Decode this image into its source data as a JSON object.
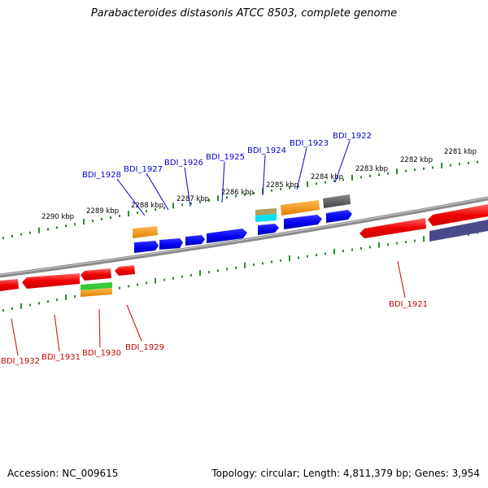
{
  "title": "Parabacteroides distasonis ATCC 8503, complete genome",
  "footer": {
    "accession": "Accession: NC_009615",
    "summary": "Topology: circular; Length: 4,811,379 bp; Genes: 3,954"
  },
  "scale_labels": {
    "top": [
      "2290 kbp",
      "2289 kbp",
      "2288 kbp",
      "2287 kbp",
      "2286 kbp",
      "2285 kbp",
      "2284 kbp",
      "2283 kbp",
      "2282 kbp",
      "2281 kbp"
    ]
  },
  "genes_top": [
    "BDI_1928",
    "BDI_1927",
    "BDI_1926",
    "BDI_1925",
    "BDI_1924",
    "BDI_1923",
    "BDI_1922"
  ],
  "genes_bottom": [
    "BDI_1932",
    "BDI_1931",
    "BDI_1930",
    "BDI_1929",
    "BDI_1921"
  ],
  "colors": {
    "backbone": "#8a8a8a",
    "ticks": "#2e8b2e",
    "forward_gene": "#0000ee",
    "reverse_gene": "#ee0000",
    "orange": "#ff9900",
    "gray": "#555555",
    "olive": "#b0a060",
    "cyan": "#00e0f0",
    "green": "#33cc33",
    "slate": "#4a4a8a"
  }
}
